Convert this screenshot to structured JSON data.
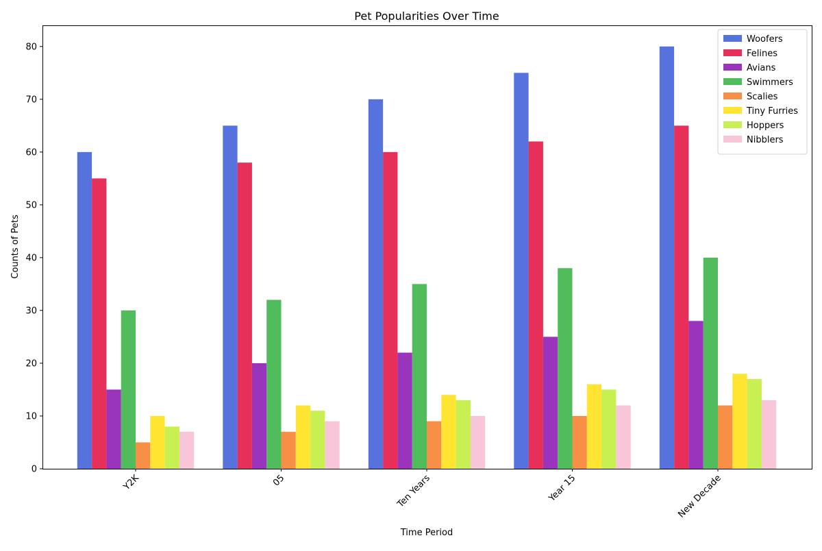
{
  "chart_data": {
    "type": "bar",
    "title": "Pet Popularities Over Time",
    "xlabel": "Time Period",
    "ylabel": "Counts of Pets",
    "categories": [
      "Y2K",
      "05",
      "Ten Years",
      "Year 15",
      "New Decade"
    ],
    "series": [
      {
        "name": "Woofers",
        "color": "#5572dd",
        "values": [
          60,
          65,
          70,
          75,
          80
        ]
      },
      {
        "name": "Felines",
        "color": "#e6305a",
        "values": [
          55,
          58,
          60,
          62,
          65
        ]
      },
      {
        "name": "Avians",
        "color": "#9b34bd",
        "values": [
          15,
          20,
          22,
          25,
          28
        ]
      },
      {
        "name": "Swimmers",
        "color": "#50bc5c",
        "values": [
          30,
          32,
          35,
          38,
          40
        ]
      },
      {
        "name": "Scalies",
        "color": "#f78f47",
        "values": [
          5,
          7,
          9,
          10,
          12
        ]
      },
      {
        "name": "Tiny Furries",
        "color": "#ffe432",
        "values": [
          10,
          12,
          14,
          16,
          18
        ]
      },
      {
        "name": "Hoppers",
        "color": "#c9f052",
        "values": [
          8,
          11,
          13,
          15,
          17
        ]
      },
      {
        "name": "Nibblers",
        "color": "#f8c6d8",
        "values": [
          7,
          9,
          10,
          12,
          13
        ]
      }
    ],
    "ylim": [
      0,
      84
    ],
    "yticks": [
      0,
      10,
      20,
      30,
      40,
      50,
      60,
      70,
      80
    ],
    "grid": false,
    "legend_position": "top-right"
  }
}
